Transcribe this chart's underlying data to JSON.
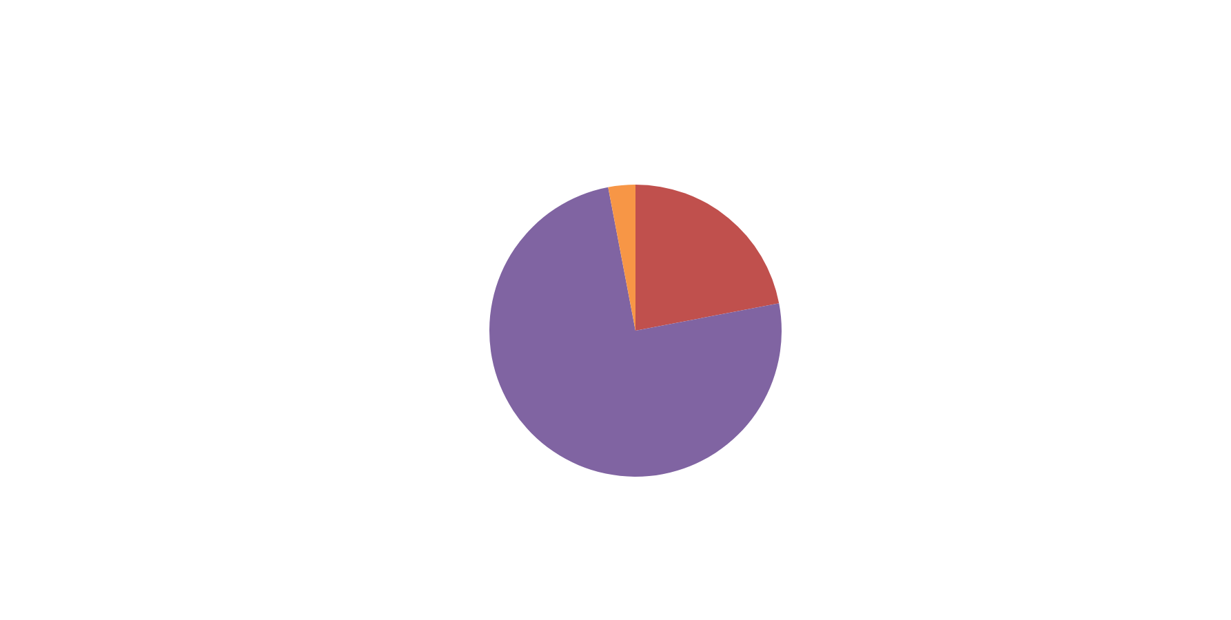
{
  "chart_data": {
    "type": "pie",
    "categories": [
      null,
      null,
      null
    ],
    "values": [
      22,
      75,
      3
    ],
    "colors": [
      "#c0504d",
      "#8064a2",
      "#f79646"
    ]
  }
}
